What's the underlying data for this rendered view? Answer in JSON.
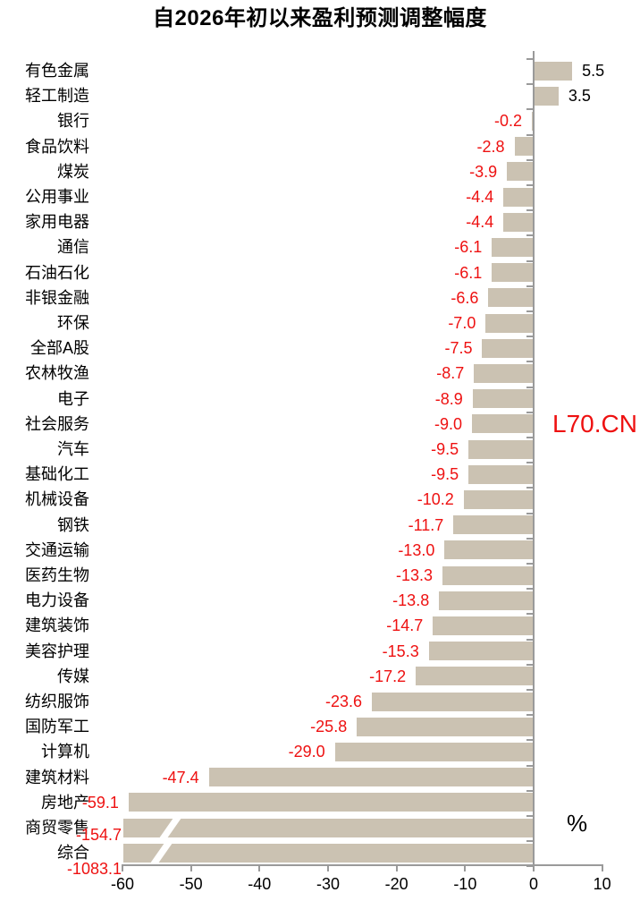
{
  "chart_data": {
    "type": "bar",
    "orientation": "horizontal",
    "title": "自2026年初以来盈利预测调整幅度",
    "unit_label": "%",
    "watermark": "L70.CN",
    "xlim": [
      -60,
      10
    ],
    "x_ticks": [
      -60,
      -50,
      -40,
      -30,
      -20,
      -10,
      0,
      10
    ],
    "grid": false,
    "legend": "none",
    "colors": {
      "bar": "#cbc2b2",
      "axis": "#9a9a9a",
      "negative_label": "#ee1111",
      "positive_label": "#000000",
      "watermark": "#ee1111"
    },
    "rows": [
      {
        "label": "有色金属",
        "value": 5.5
      },
      {
        "label": "轻工制造",
        "value": 3.5
      },
      {
        "label": "银行",
        "value": -0.2
      },
      {
        "label": "食品饮料",
        "value": -2.8
      },
      {
        "label": "煤炭",
        "value": -3.9
      },
      {
        "label": "公用事业",
        "value": -4.4
      },
      {
        "label": "家用电器",
        "value": -4.4
      },
      {
        "label": "通信",
        "value": -6.1
      },
      {
        "label": "石油石化",
        "value": -6.1
      },
      {
        "label": "非银金融",
        "value": -6.6
      },
      {
        "label": "环保",
        "value": -7.0
      },
      {
        "label": "全部A股",
        "value": -7.5
      },
      {
        "label": "农林牧渔",
        "value": -8.7
      },
      {
        "label": "电子",
        "value": -8.9
      },
      {
        "label": "社会服务",
        "value": -9.0
      },
      {
        "label": "汽车",
        "value": -9.5
      },
      {
        "label": "基础化工",
        "value": -9.5
      },
      {
        "label": "机械设备",
        "value": -10.2
      },
      {
        "label": "钢铁",
        "value": -11.7
      },
      {
        "label": "交通运输",
        "value": -13.0
      },
      {
        "label": "医药生物",
        "value": -13.3
      },
      {
        "label": "电力设备",
        "value": -13.8
      },
      {
        "label": "建筑装饰",
        "value": -14.7
      },
      {
        "label": "美容护理",
        "value": -15.3
      },
      {
        "label": "传媒",
        "value": -17.2
      },
      {
        "label": "纺织服饰",
        "value": -23.6
      },
      {
        "label": "国防军工",
        "value": -25.8
      },
      {
        "label": "计算机",
        "value": -29.0
      },
      {
        "label": "建筑材料",
        "value": -47.4
      },
      {
        "label": "房地产",
        "value": -59.1
      },
      {
        "label": "商贸零售",
        "value": -154.7,
        "clipped": true
      },
      {
        "label": "综合",
        "value": -1083.1,
        "clipped": true
      }
    ]
  }
}
